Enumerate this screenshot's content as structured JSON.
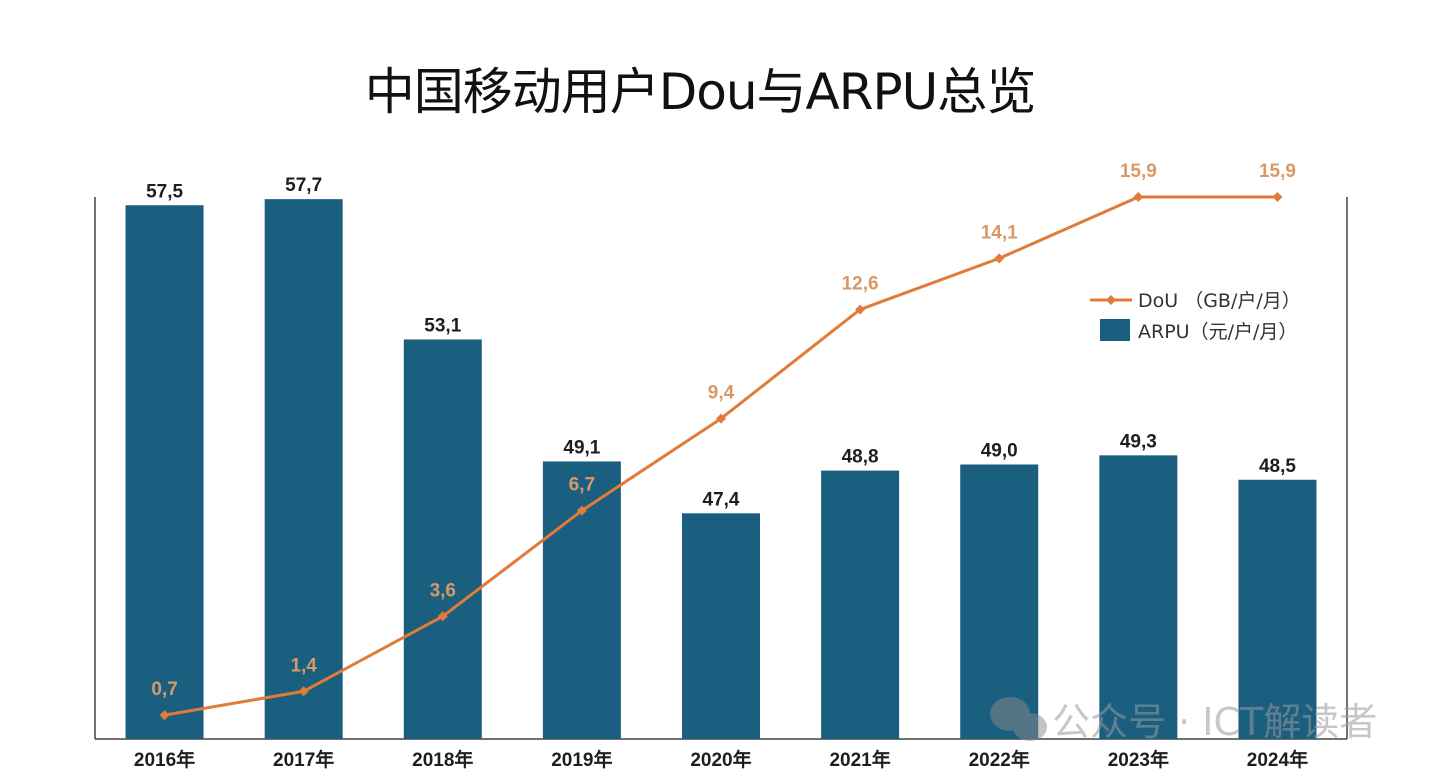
{
  "chart_data": {
    "type": "bar",
    "title": "中国移动用户Dou与ARPU总览",
    "categories": [
      "2016年",
      "2017年",
      "2018年",
      "2019年",
      "2020年",
      "2021年",
      "2022年",
      "2023年",
      "2024年"
    ],
    "series": [
      {
        "name": "ARPU（元/户/月）",
        "type": "bar",
        "color": "#1a5f80",
        "axis": "left",
        "values": [
          57.5,
          57.7,
          53.1,
          49.1,
          47.4,
          48.8,
          49.0,
          49.3,
          48.5
        ],
        "labels": [
          "57,5",
          "57,7",
          "53,1",
          "49,1",
          "47,4",
          "48,8",
          "49,0",
          "49,3",
          "48,5"
        ]
      },
      {
        "name": "DoU（GB/户/月）",
        "type": "line",
        "color": "#e07b39",
        "marker": "diamond",
        "axis": "right",
        "values": [
          0.7,
          1.4,
          3.6,
          6.7,
          9.4,
          12.6,
          14.1,
          15.9,
          15.9
        ],
        "labels": [
          "0,7",
          "1,4",
          "3,6",
          "6,7",
          "9,4",
          "12,6",
          "14,1",
          "15,9",
          "15,9"
        ]
      }
    ],
    "axes": {
      "left_range": [
        40,
        58
      ],
      "right_range": [
        0,
        16
      ],
      "ticks_visible": false
    },
    "xlabel": "",
    "ylabel": "",
    "grid": false,
    "legend": {
      "position": "right",
      "entries": [
        "DoU （GB/户/月）",
        "ARPU（元/户/月）"
      ]
    }
  },
  "watermark": "公众号 · ICT解读者"
}
